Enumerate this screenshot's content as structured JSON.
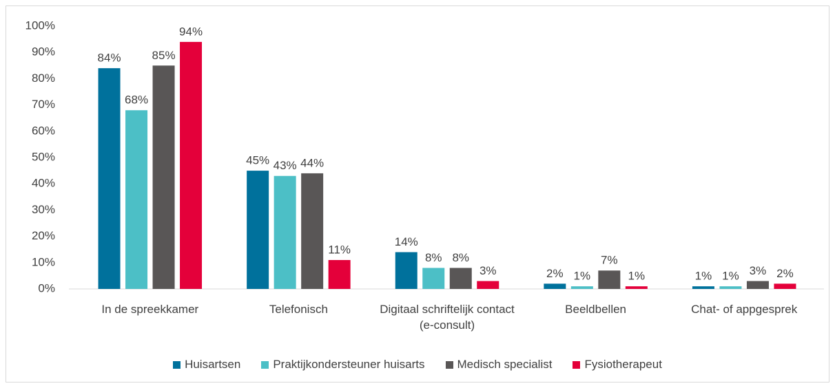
{
  "chart_data": {
    "type": "bar",
    "categories": [
      "In de spreekkamer",
      "Telefonisch",
      "Digitaal schriftelijk contact (e-consult)",
      "Beeldbellen",
      "Chat- of appgesprek"
    ],
    "series": [
      {
        "name": "Huisartsen",
        "color": "#00719c",
        "values": [
          84,
          45,
          14,
          2,
          1
        ],
        "value_labels": [
          "84%",
          "45%",
          "14%",
          "2%",
          "1%"
        ]
      },
      {
        "name": "Praktijkondersteuner huisarts",
        "color": "#4cbfc6",
        "values": [
          68,
          43,
          8,
          1,
          1
        ],
        "value_labels": [
          "68%",
          "43%",
          "8%",
          "1%",
          "1%"
        ]
      },
      {
        "name": "Medisch specialist",
        "color": "#595656",
        "values": [
          85,
          44,
          8,
          7,
          3
        ],
        "value_labels": [
          "85%",
          "44%",
          "8%",
          "7%",
          "3%"
        ]
      },
      {
        "name": "Fysiotherapeut",
        "color": "#e4003a",
        "values": [
          94,
          11,
          3,
          1,
          2
        ],
        "value_labels": [
          "94%",
          "11%",
          "3%",
          "1%",
          "2%"
        ]
      }
    ],
    "ylim": [
      0,
      100
    ],
    "yticks": [
      {
        "value": 0,
        "label": "0%"
      },
      {
        "value": 10,
        "label": "10%"
      },
      {
        "value": 20,
        "label": "20%"
      },
      {
        "value": 30,
        "label": "30%"
      },
      {
        "value": 40,
        "label": "40%"
      },
      {
        "value": 50,
        "label": "50%"
      },
      {
        "value": 60,
        "label": "60%"
      },
      {
        "value": 70,
        "label": "70%"
      },
      {
        "value": 80,
        "label": "80%"
      },
      {
        "value": 90,
        "label": "90%"
      },
      {
        "value": 100,
        "label": "100%"
      }
    ],
    "grid": false,
    "legend": "bottom"
  }
}
